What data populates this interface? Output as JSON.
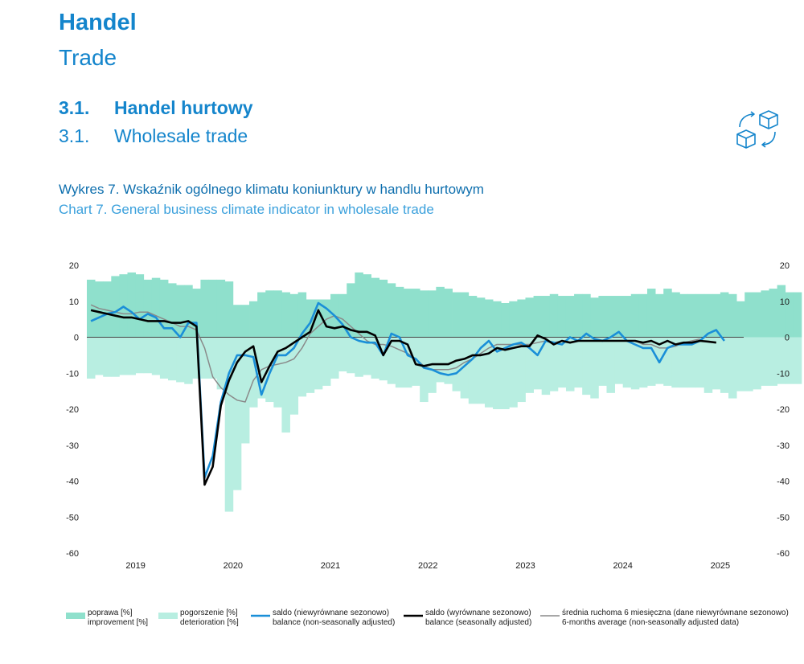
{
  "header": {
    "title_pl": "Handel",
    "title_en": "Trade",
    "section_number_1": "3.1.",
    "section_title_pl": "Handel hurtowy",
    "section_number_2": "3.1.",
    "section_title_en": "Wholesale trade",
    "section_icon": "boxes-exchange-icon"
  },
  "chart_title_pl": "Wykres 7. Wskaźnik ogólnego klimatu koniunktury w handlu hurtowym",
  "chart_title_en": "Chart 7. General business climate indicator in wholesale trade",
  "legend": [
    {
      "pl": "poprawa [%]",
      "en": "improvement [%]",
      "color": "#8fe0cc",
      "kind": "box"
    },
    {
      "pl": "pogorszenie [%]",
      "en": "deterioration [%]",
      "color": "#b8eee1",
      "kind": "box"
    },
    {
      "pl": "saldo (niewyrównane sezonowo)",
      "en": "balance (non-seasonally adjusted)",
      "color": "#1a8fd8",
      "kind": "line"
    },
    {
      "pl": "saldo (wyrównane sezonowo)",
      "en": "balance (seasonally adjusted)",
      "color": "#000000",
      "kind": "line"
    },
    {
      "pl": "średnia ruchoma 6 miesięczna (dane niewyrównane sezonowo)",
      "en": "6-months average (non-seasonally adjusted data)",
      "color": "#8a8a8a",
      "kind": "line"
    }
  ],
  "chart_data": {
    "type": "bar",
    "ylim": [
      -60,
      20
    ],
    "yticks": [
      "20",
      "10",
      "0",
      "-10",
      "-20",
      "-30",
      "-40",
      "-50",
      "-60"
    ],
    "yticks_right": [
      "20",
      "10",
      "0",
      "-10",
      "-20",
      "-30",
      "-40",
      "-50",
      "-60"
    ],
    "x_year_labels": [
      "2019",
      "2020",
      "2021",
      "2022",
      "2023",
      "2024",
      "2025"
    ],
    "start": "2018-07",
    "end": "2025-01",
    "colors": {
      "improvement": "#8fe0cc",
      "deterioration": "#b8eee1",
      "nsa": "#1a8fd8",
      "sa": "#000000",
      "avg": "#8a8a8a"
    },
    "series": [
      {
        "name": "poprawa [%] / improvement [%]",
        "type": "bar",
        "values": [
          16,
          15.5,
          15.5,
          17,
          17.5,
          18,
          17.5,
          16,
          16.5,
          16,
          15,
          14.5,
          14.5,
          13.5,
          16,
          16,
          16,
          15.5,
          9,
          9,
          10,
          12.5,
          13,
          13,
          12.5,
          12,
          12.5,
          10.5,
          10.5,
          10.5,
          12,
          12,
          15,
          18,
          17.5,
          16.5,
          16,
          15,
          14,
          13.5,
          13.5,
          13,
          13,
          14,
          13.5,
          12.5,
          12.5,
          11.5,
          11,
          10.5,
          10,
          9.5,
          10,
          10.5,
          11,
          11.5,
          11.5,
          12,
          11.5,
          11.5,
          12,
          12,
          11,
          11.5,
          11.5,
          11.5,
          11.5,
          12,
          12,
          13.5,
          12,
          13.5,
          12.5,
          12,
          12,
          12,
          12,
          12,
          12.5,
          12,
          10,
          12.5,
          12.5,
          13,
          13.5,
          14.5,
          12.5,
          12.5
        ]
      },
      {
        "name": "pogorszenie [%] / deterioration [%]",
        "type": "bar",
        "values": [
          -11.5,
          -10.5,
          -11,
          -11,
          -10.5,
          -10.5,
          -10,
          -10,
          -10.5,
          -11.5,
          -12,
          -12.5,
          -13,
          -11.5,
          -11.5,
          -11.5,
          -14.5,
          -48.5,
          -42.5,
          -29.5,
          -19.5,
          -17,
          -18,
          -19.5,
          -26.5,
          -21.5,
          -16.5,
          -15.5,
          -14.5,
          -13.5,
          -11.5,
          -9.5,
          -10,
          -11,
          -10.5,
          -11.5,
          -12,
          -13,
          -14,
          -14,
          -13.5,
          -18,
          -15.5,
          -12.5,
          -13,
          -15,
          -17,
          -18.5,
          -18.5,
          -19.5,
          -20,
          -20,
          -19.5,
          -18,
          -15.5,
          -14.5,
          -16,
          -15,
          -14,
          -15,
          -14,
          -16,
          -17,
          -13.5,
          -15.5,
          -13,
          -14,
          -14.5,
          -14,
          -13.5,
          -13,
          -13.5,
          -14,
          -14,
          -14,
          -14,
          -15.5,
          -14.5,
          -15.5,
          -17,
          -15,
          -15,
          -14.5,
          -13.5,
          -13.5,
          -13,
          -13,
          -13
        ]
      },
      {
        "name": "saldo (niewyrównane sezonowo) / balance (non-seasonally adjusted)",
        "type": "line",
        "values": [
          4.5,
          5.5,
          6.5,
          7,
          8.5,
          7,
          5,
          6.5,
          5.5,
          2.5,
          2.5,
          0,
          4,
          4,
          -39,
          -33,
          -18,
          -10,
          -5,
          -5,
          -5.5,
          -16,
          -10,
          -5,
          -5,
          -3,
          1,
          4,
          9.5,
          8,
          6,
          3.5,
          0,
          -1,
          -1.5,
          -1.5,
          -5,
          1,
          0,
          -5,
          -6,
          -8.5,
          -9,
          -10,
          -10.5,
          -10,
          -8,
          -6,
          -3,
          -1,
          -4,
          -3,
          -2,
          -1.5,
          -3,
          -5,
          -1,
          -1.5,
          -2,
          0,
          -1,
          1,
          -0.5,
          -1,
          0,
          1.5,
          -1,
          -2,
          -3,
          -3,
          -7,
          -3,
          -2,
          -2,
          -2,
          -1,
          1,
          2,
          -1
        ]
      },
      {
        "name": "saldo (wyrównane sezonowo) / balance (seasonally adjusted)",
        "type": "line",
        "values": [
          7.5,
          7,
          6.5,
          6,
          5.5,
          5.5,
          5,
          4.5,
          4.5,
          4.5,
          4,
          4,
          4.5,
          3,
          -41,
          -36,
          -19,
          -12,
          -7,
          -4,
          -2.5,
          -12.5,
          -8,
          -4,
          -3,
          -1.5,
          0,
          1.5,
          7.5,
          3,
          2.5,
          3,
          2,
          1.5,
          1.5,
          0.5,
          -5,
          -1,
          -1,
          -2,
          -7.5,
          -8,
          -7.5,
          -7.5,
          -7.5,
          -6.5,
          -6,
          -5,
          -5,
          -4.5,
          -3,
          -3.5,
          -3,
          -2.5,
          -2.5,
          0.5,
          -0.5,
          -2,
          -1,
          -1.5,
          -1,
          -1,
          -1,
          -1,
          -1,
          -1,
          -1,
          -1,
          -1.5,
          -1,
          -2,
          -1,
          -2,
          -1.5,
          -1.5,
          -1,
          -1.2,
          -1.5
        ]
      },
      {
        "name": "średnia ruchoma 6 miesięczna (dane niewyrównane sezonowo) / 6-months average (non-seasonally adjusted data)",
        "type": "line",
        "values": [
          9,
          8,
          7.5,
          7,
          6.5,
          6.5,
          7,
          7,
          6,
          5,
          4,
          3,
          3,
          2,
          -3,
          -11,
          -14,
          -16,
          -17.5,
          -18,
          -12,
          -9,
          -8,
          -7.5,
          -7,
          -6,
          -3,
          1,
          3,
          5,
          6,
          5,
          3,
          1,
          -1,
          -2,
          -2,
          -2.5,
          -3.5,
          -4.5,
          -6,
          -8,
          -9,
          -9,
          -9,
          -8.5,
          -7,
          -6,
          -4.5,
          -3,
          -2,
          -2,
          -2,
          -2,
          -2,
          -1.5,
          -1,
          -1.5,
          -1,
          -1.5,
          -1,
          -1,
          -1,
          -1,
          -1,
          -1,
          -1,
          -1,
          -2,
          -2,
          -3,
          -3,
          -2.5,
          -1.5,
          -1,
          -0.5
        ]
      }
    ]
  }
}
